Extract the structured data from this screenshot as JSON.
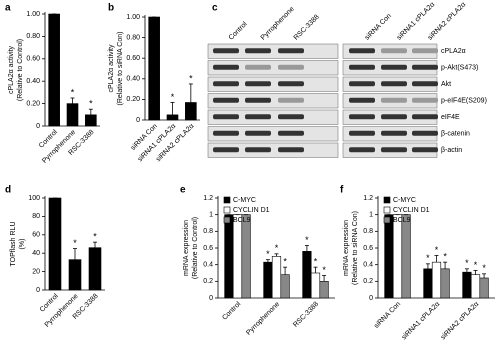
{
  "chart_data": [
    {
      "panel": "a",
      "type": "bar",
      "ylabel": [
        "cPLA2α activity",
        "(Relative to Control)"
      ],
      "categories": [
        "Control",
        "Pyrrophenone",
        "RSC-3388"
      ],
      "values": [
        1.0,
        0.2,
        0.1
      ],
      "errors": [
        0,
        0.05,
        0.05
      ],
      "significance": [
        null,
        "*",
        "*"
      ],
      "color": "#000000",
      "ylim": [
        0,
        1.0
      ],
      "yticks": [
        0,
        {
          "value": 0.2,
          "label": "0.20"
        },
        {
          "value": 0.4,
          "label": "0.40"
        },
        {
          "value": 0.6,
          "label": "0.60"
        },
        {
          "value": 0.8,
          "label": "0.80"
        },
        {
          "value": 1.0,
          "label": "1.00"
        }
      ]
    },
    {
      "panel": "b",
      "type": "bar",
      "ylabel": [
        "cPLA2α activity",
        "(Relative to siRNA Con)"
      ],
      "categories": [
        "siRNA Con",
        "siRNA1 cPLA2α",
        "siRNA2 cPLA2α"
      ],
      "values": [
        1.0,
        0.05,
        0.17
      ],
      "errors": [
        0,
        0.12,
        0.18
      ],
      "significance": [
        null,
        "*",
        "*"
      ],
      "color": "#000000",
      "ylim": [
        0,
        1.0
      ],
      "yticks": [
        0,
        {
          "value": 0.2,
          "label": "0.20"
        },
        {
          "value": 0.4,
          "label": "0.40"
        },
        {
          "value": 0.6,
          "label": "0.60"
        },
        {
          "value": 0.8,
          "label": "0.80"
        },
        {
          "value": 1.0,
          "label": "1.00"
        }
      ]
    },
    {
      "panel": "d",
      "type": "bar",
      "ylabel": [
        "TOPflash RLU",
        "(%)"
      ],
      "categories": [
        "Control",
        "Pyrrophenone",
        "RSC-3388"
      ],
      "values": [
        100,
        33,
        46
      ],
      "errors": [
        0,
        12,
        6
      ],
      "significance": [
        null,
        "*",
        "*"
      ],
      "color": "#000000",
      "ylim": [
        0,
        100
      ],
      "yticks": [
        0,
        20,
        40,
        60,
        80,
        100
      ]
    },
    {
      "panel": "e",
      "type": "grouped-bar",
      "ylabel": [
        "mRNA expression",
        "(Relative to Control)"
      ],
      "categories": [
        "Control",
        "Pyrrophenone",
        "RSC-3388"
      ],
      "series": [
        {
          "name": "C-MYC",
          "color": "#000000",
          "values": [
            1,
            0.43,
            0.56
          ],
          "errors": [
            0,
            0.03,
            0.07
          ],
          "significance": [
            null,
            "*",
            "*"
          ]
        },
        {
          "name": "CYCLIN D1",
          "color": "#ffffff",
          "values": [
            1,
            0.5,
            0.3
          ],
          "errors": [
            0,
            0.03,
            0.07
          ],
          "significance": [
            null,
            "*",
            "*"
          ]
        },
        {
          "name": "BCL9",
          "color": "#888888",
          "values": [
            1,
            0.28,
            0.2
          ],
          "errors": [
            0,
            0.09,
            0.07
          ],
          "significance": [
            null,
            "*",
            "*"
          ]
        }
      ],
      "ylim": [
        0,
        1.2
      ],
      "yticks": [
        0,
        0.2,
        0.4,
        0.6,
        0.8,
        1,
        1.2
      ]
    },
    {
      "panel": "f",
      "type": "grouped-bar",
      "ylabel": [
        "mRNA expression",
        "(Relative to siRNA Con)"
      ],
      "categories": [
        "siRNA Con",
        "siRNA1 cPLA2α",
        "siRNA2 cPLA2α"
      ],
      "series": [
        {
          "name": "C-MYC",
          "color": "#000000",
          "values": [
            1,
            0.35,
            0.31
          ],
          "errors": [
            0,
            0.06,
            0.04
          ],
          "significance": [
            null,
            "*",
            "*"
          ]
        },
        {
          "name": "CYCLIN D1",
          "color": "#ffffff",
          "values": [
            1,
            0.43,
            0.28
          ],
          "errors": [
            0,
            0.08,
            0.05
          ],
          "significance": [
            null,
            "*",
            "*"
          ]
        },
        {
          "name": "BCL9",
          "color": "#888888",
          "values": [
            1,
            0.35,
            0.24
          ],
          "errors": [
            0,
            0.08,
            0.05
          ],
          "significance": [
            null,
            "*",
            "*"
          ]
        }
      ],
      "ylim": [
        0,
        1.2
      ],
      "yticks": [
        0,
        0.2,
        0.4,
        0.6,
        0.8,
        1,
        1.2
      ]
    }
  ],
  "blot": {
    "panel": "c",
    "lanes": [
      "Control",
      "Pyrrophenone",
      "RSC-3388",
      "siRNA Con",
      "siRNA1 cPLA2α",
      "siRNA2 cPLA2α"
    ],
    "rows": [
      "cPLA2α",
      "p-Akt(S473)",
      "Akt",
      "p-eIF4E(S209)",
      "eIF4E",
      "β-catenin",
      "β-actin"
    ]
  }
}
